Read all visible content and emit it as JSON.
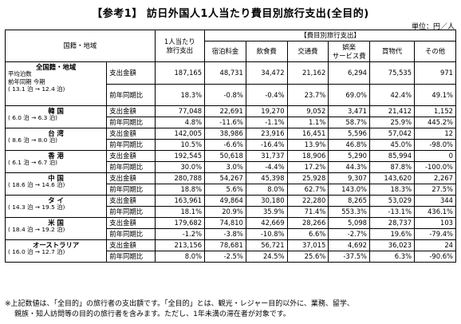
{
  "title": "【参考1】 訪日外国人1人当たり費目別旅行支出(全目的)",
  "unit": "単位：円／人",
  "headers": {
    "country_region": "国籍・地域",
    "per_person_spend": "1人当たり\n旅行支出",
    "breakdown": "【費目別旅行支出】",
    "categories": [
      "宿泊料金",
      "飲食費",
      "交通費",
      "娯楽\nサービス費",
      "買物代",
      "その他"
    ]
  },
  "metrics": {
    "expenditure": "支出金額",
    "yoy": "前年同期比"
  },
  "rows": [
    {
      "name": "全国籍・地域",
      "sub_lines": [
        "平均泊数",
        "前年同期   今期",
        "(  13.1 泊 →  12.4 泊)"
      ],
      "spend": [
        "187,165",
        "48,731",
        "34,472",
        "21,162",
        "6,294",
        "75,535",
        "971"
      ],
      "yoy": [
        "18.3%",
        "-0.8%",
        "-0.4%",
        "23.7%",
        "69.0%",
        "42.4%",
        "49.1%"
      ]
    },
    {
      "name": "韓 国",
      "sub_lines": [
        "(  6.0 泊 →  6.3 泊)"
      ],
      "spend": [
        "77,048",
        "22,691",
        "19,270",
        "9,052",
        "3,471",
        "21,412",
        "1,152"
      ],
      "yoy": [
        "4.8%",
        "-11.6%",
        "-1.1%",
        "1.1%",
        "58.7%",
        "25.9%",
        "445.2%"
      ]
    },
    {
      "name": "台 湾",
      "sub_lines": [
        "(  8.6 泊 →  8.0 泊)"
      ],
      "spend": [
        "142,005",
        "38,986",
        "23,916",
        "16,451",
        "5,596",
        "57,042",
        "12"
      ],
      "yoy": [
        "10.5%",
        "-6.6%",
        "-16.4%",
        "13.9%",
        "46.8%",
        "45.0%",
        "-98.0%"
      ]
    },
    {
      "name": "香 港",
      "sub_lines": [
        "(  6.1 泊 →  6.7 泊)"
      ],
      "spend": [
        "192,545",
        "50,618",
        "31,737",
        "18,906",
        "5,290",
        "85,994",
        "0"
      ],
      "yoy": [
        "30.0%",
        "3.0%",
        "-4.4%",
        "17.2%",
        "44.3%",
        "87.8%",
        "-100.0%"
      ]
    },
    {
      "name": "中 国",
      "sub_lines": [
        "(  18.6 泊 →  14.6 泊)"
      ],
      "spend": [
        "280,788",
        "54,267",
        "45,398",
        "25,928",
        "9,307",
        "143,620",
        "2,267"
      ],
      "yoy": [
        "18.8%",
        "5.6%",
        "8.0%",
        "62.7%",
        "143.0%",
        "18.3%",
        "27.5%"
      ]
    },
    {
      "name": "タ イ",
      "sub_lines": [
        "(  14.3 泊 →  19.5 泊)"
      ],
      "spend": [
        "163,961",
        "49,864",
        "30,180",
        "22,280",
        "8,265",
        "53,029",
        "344"
      ],
      "yoy": [
        "18.1%",
        "20.9%",
        "35.9%",
        "71.4%",
        "553.3%",
        "-13.1%",
        "436.1%"
      ]
    },
    {
      "name": "米 国",
      "sub_lines": [
        "(  18.4 泊 →  19.2 泊)"
      ],
      "spend": [
        "179,682",
        "74,810",
        "42,669",
        "28,266",
        "5,098",
        "28,737",
        "103"
      ],
      "yoy": [
        "-1.2%",
        "-3.8%",
        "-10.8%",
        "6.6%",
        "-2.7%",
        "19.6%",
        "-79.4%"
      ]
    },
    {
      "name": "オーストラリア",
      "sub_lines": [
        "(  16.0 泊 →  12.7 泊)"
      ],
      "spend": [
        "213,156",
        "78,681",
        "56,721",
        "37,015",
        "4,692",
        "36,023",
        "24"
      ],
      "yoy": [
        "8.0%",
        "-2.5%",
        "24.5%",
        "25.6%",
        "-37.5%",
        "6.3%",
        "-90.6%"
      ]
    }
  ],
  "note_lines": [
    "※上記数値は、「全目的」の旅行者の支出額です。「全目的」とは、観光・レジャー目的以外に、業務、留学、",
    "親族・知人訪問等の目的の旅行者を含みます。ただし、1年未満の滞在者が対象です。"
  ]
}
